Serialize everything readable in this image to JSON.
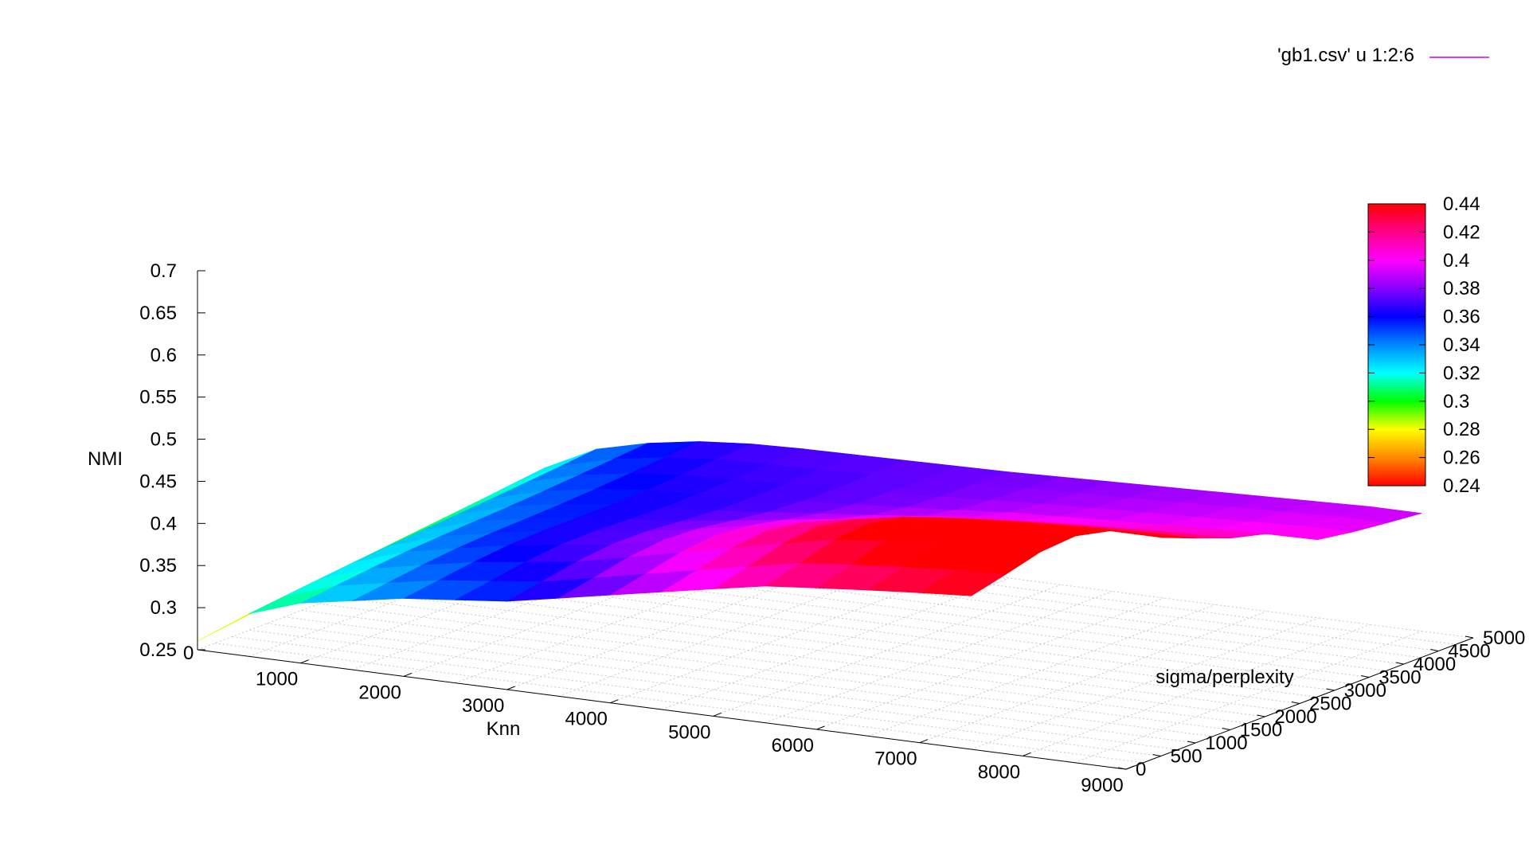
{
  "chart_data": {
    "type": "surface3d",
    "legend": {
      "label": "'gb1.csv' u 1:2:6",
      "color": "#cc00ff",
      "placement": "top-right"
    },
    "x": {
      "label": "Knn",
      "range": [
        0,
        9000
      ],
      "ticks": [
        1000,
        2000,
        3000,
        4000,
        5000,
        6000,
        7000,
        8000,
        9000
      ]
    },
    "y": {
      "label": "sigma/perplexity",
      "range": [
        0,
        5000
      ],
      "ticks": [
        0,
        500,
        1000,
        1500,
        2000,
        2500,
        3000,
        3500,
        4000,
        4500,
        5000
      ]
    },
    "z": {
      "label": "NMI",
      "range": [
        0.25,
        0.7
      ],
      "ticks": [
        "0.25",
        "0.3",
        "0.35",
        "0.4",
        "0.45",
        "0.5",
        "0.55",
        "0.6",
        "0.65",
        "0.7"
      ],
      "origin_label": "0"
    },
    "colorbox": {
      "range": [
        0.24,
        0.44
      ],
      "ticks": [
        "0.44",
        "0.42",
        "0.4",
        "0.38",
        "0.36",
        "0.34",
        "0.32",
        "0.3",
        "0.28",
        "0.26",
        "0.24"
      ],
      "palette": [
        "#ff0000",
        "#ff8800",
        "#ffff00",
        "#00ff00",
        "#00ffff",
        "#0088ff",
        "#0000ff",
        "#8800ff",
        "#ff00ff",
        "#ff0088",
        "#ff0000"
      ]
    },
    "surface": {
      "grid_x": [
        0,
        500,
        1000,
        1500,
        2000,
        2500,
        3000,
        3500,
        4000,
        4500,
        5000,
        5500,
        6000,
        6500,
        7000,
        7500,
        8000,
        8500,
        9000
      ],
      "grid_y": [
        0,
        500,
        1000,
        1500,
        2000,
        2500,
        3000,
        3500,
        4000,
        4500,
        5000
      ],
      "z_near_edge": [
        0.26,
        0.3,
        0.32,
        0.33,
        0.34,
        0.345,
        0.35,
        0.36,
        0.37,
        0.38,
        0.39,
        0.4,
        0.405,
        0.41,
        0.415,
        0.42,
        0.425,
        0.43,
        0.43
      ],
      "z_far_edge": [
        0.31,
        0.34,
        0.355,
        0.365,
        0.37,
        0.372,
        0.373,
        0.374,
        0.375,
        0.376,
        0.378,
        0.38,
        0.382,
        0.384,
        0.386,
        0.388,
        0.39,
        0.39,
        0.39
      ],
      "valid_x_max_at_y0": 7500,
      "valid_x_max_at_y5000": 9000
    }
  }
}
